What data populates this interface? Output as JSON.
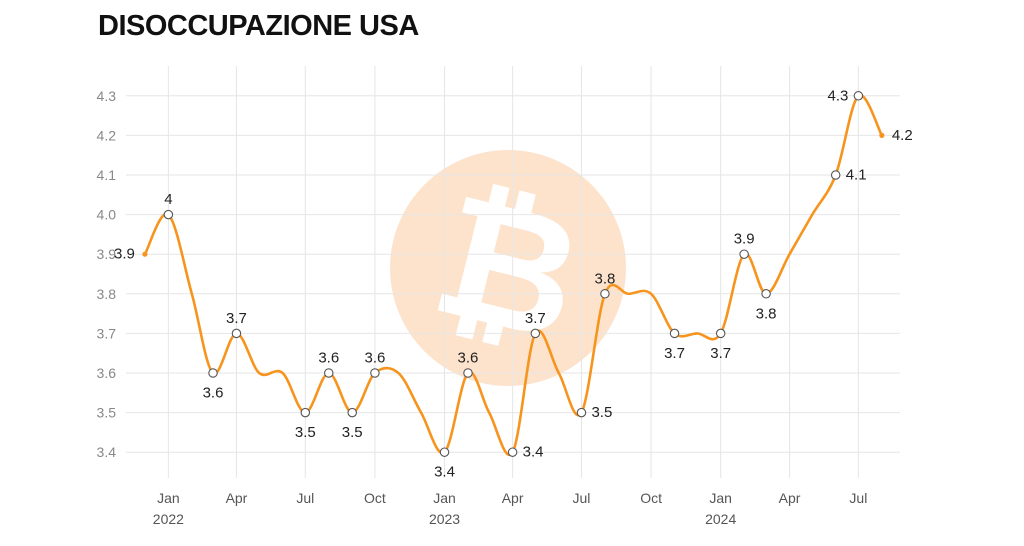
{
  "header": {
    "title": "DISOCCUPAZIONE USA"
  },
  "colors": {
    "line": "#f7941d",
    "marker_fill": "#ffffff",
    "marker_stroke": "#555555",
    "grid": "#e6e6e6",
    "watermark": "#fde3cc"
  },
  "watermark": {
    "icon": "bitcoin-logo-icon"
  },
  "chart_data": {
    "type": "line",
    "title": "DISOCCUPAZIONE USA",
    "xlabel": "",
    "ylabel": "",
    "ylim": [
      3.35,
      4.35
    ],
    "xlim": [
      "2021-11-06",
      "2024-08-25"
    ],
    "grid": true,
    "legend": "none",
    "y_ticks": [
      "3.4",
      "3.5",
      "3.6",
      "3.7",
      "3.8",
      "3.9",
      "4.0",
      "4.1",
      "4.2",
      "4.3"
    ],
    "x_ticks": [
      {
        "date": "2022-01-01",
        "label": "Jan",
        "year": "2022"
      },
      {
        "date": "2022-04-01",
        "label": "Apr",
        "year": ""
      },
      {
        "date": "2022-07-01",
        "label": "Jul",
        "year": ""
      },
      {
        "date": "2022-10-01",
        "label": "Oct",
        "year": ""
      },
      {
        "date": "2023-01-01",
        "label": "Jan",
        "year": "2023"
      },
      {
        "date": "2023-04-01",
        "label": "Apr",
        "year": ""
      },
      {
        "date": "2023-07-01",
        "label": "Jul",
        "year": ""
      },
      {
        "date": "2023-10-01",
        "label": "Oct",
        "year": ""
      },
      {
        "date": "2024-01-01",
        "label": "Jan",
        "year": "2024"
      },
      {
        "date": "2024-04-01",
        "label": "Apr",
        "year": ""
      },
      {
        "date": "2024-07-01",
        "label": "Jul",
        "year": ""
      }
    ],
    "series": [
      {
        "values": [
          {
            "date": "2021-12-01",
            "value": 3.9,
            "label": "3.9",
            "marker": false,
            "pos": "left"
          },
          {
            "date": "2022-01-01",
            "value": 4.0,
            "label": "4",
            "marker": true,
            "pos": "above"
          },
          {
            "date": "2022-02-01",
            "value": 3.8,
            "label": "",
            "marker": false
          },
          {
            "date": "2022-03-01",
            "value": 3.6,
            "label": "3.6",
            "marker": true,
            "pos": "below"
          },
          {
            "date": "2022-04-01",
            "value": 3.7,
            "label": "3.7",
            "marker": true,
            "pos": "above"
          },
          {
            "date": "2022-05-01",
            "value": 3.6,
            "label": "",
            "marker": false
          },
          {
            "date": "2022-06-01",
            "value": 3.6,
            "label": "",
            "marker": false
          },
          {
            "date": "2022-07-01",
            "value": 3.5,
            "label": "3.5",
            "marker": true,
            "pos": "below"
          },
          {
            "date": "2022-08-01",
            "value": 3.6,
            "label": "3.6",
            "marker": true,
            "pos": "above"
          },
          {
            "date": "2022-09-01",
            "value": 3.5,
            "label": "3.5",
            "marker": true,
            "pos": "below"
          },
          {
            "date": "2022-10-01",
            "value": 3.6,
            "label": "3.6",
            "marker": true,
            "pos": "above"
          },
          {
            "date": "2022-11-01",
            "value": 3.6,
            "label": "",
            "marker": false
          },
          {
            "date": "2022-12-01",
            "value": 3.5,
            "label": "",
            "marker": false
          },
          {
            "date": "2023-01-01",
            "value": 3.4,
            "label": "3.4",
            "marker": true,
            "pos": "below"
          },
          {
            "date": "2023-02-01",
            "value": 3.6,
            "label": "3.6",
            "marker": true,
            "pos": "above"
          },
          {
            "date": "2023-03-01",
            "value": 3.5,
            "label": "",
            "marker": false
          },
          {
            "date": "2023-04-01",
            "value": 3.4,
            "label": "3.4",
            "marker": true,
            "pos": "right"
          },
          {
            "date": "2023-05-01",
            "value": 3.7,
            "label": "3.7",
            "marker": true,
            "pos": "above"
          },
          {
            "date": "2023-06-01",
            "value": 3.6,
            "label": "",
            "marker": false
          },
          {
            "date": "2023-07-01",
            "value": 3.5,
            "label": "3.5",
            "marker": true,
            "pos": "right"
          },
          {
            "date": "2023-08-01",
            "value": 3.8,
            "label": "3.8",
            "marker": true,
            "pos": "above"
          },
          {
            "date": "2023-09-01",
            "value": 3.8,
            "label": "",
            "marker": false
          },
          {
            "date": "2023-10-01",
            "value": 3.8,
            "label": "",
            "marker": false
          },
          {
            "date": "2023-11-01",
            "value": 3.7,
            "label": "3.7",
            "marker": true,
            "pos": "below"
          },
          {
            "date": "2023-12-01",
            "value": 3.7,
            "label": "",
            "marker": false
          },
          {
            "date": "2024-01-01",
            "value": 3.7,
            "label": "3.7",
            "marker": true,
            "pos": "below"
          },
          {
            "date": "2024-02-01",
            "value": 3.9,
            "label": "3.9",
            "marker": true,
            "pos": "above"
          },
          {
            "date": "2024-03-01",
            "value": 3.8,
            "label": "3.8",
            "marker": true,
            "pos": "below"
          },
          {
            "date": "2024-04-01",
            "value": 3.9,
            "label": "",
            "marker": false
          },
          {
            "date": "2024-05-01",
            "value": 4.0,
            "label": "",
            "marker": false
          },
          {
            "date": "2024-06-01",
            "value": 4.1,
            "label": "4.1",
            "marker": true,
            "pos": "right"
          },
          {
            "date": "2024-07-01",
            "value": 4.3,
            "label": "4.3",
            "marker": true,
            "pos": "left"
          },
          {
            "date": "2024-08-01",
            "value": 4.2,
            "label": "4.2",
            "marker": false,
            "pos": "right"
          }
        ]
      }
    ]
  }
}
